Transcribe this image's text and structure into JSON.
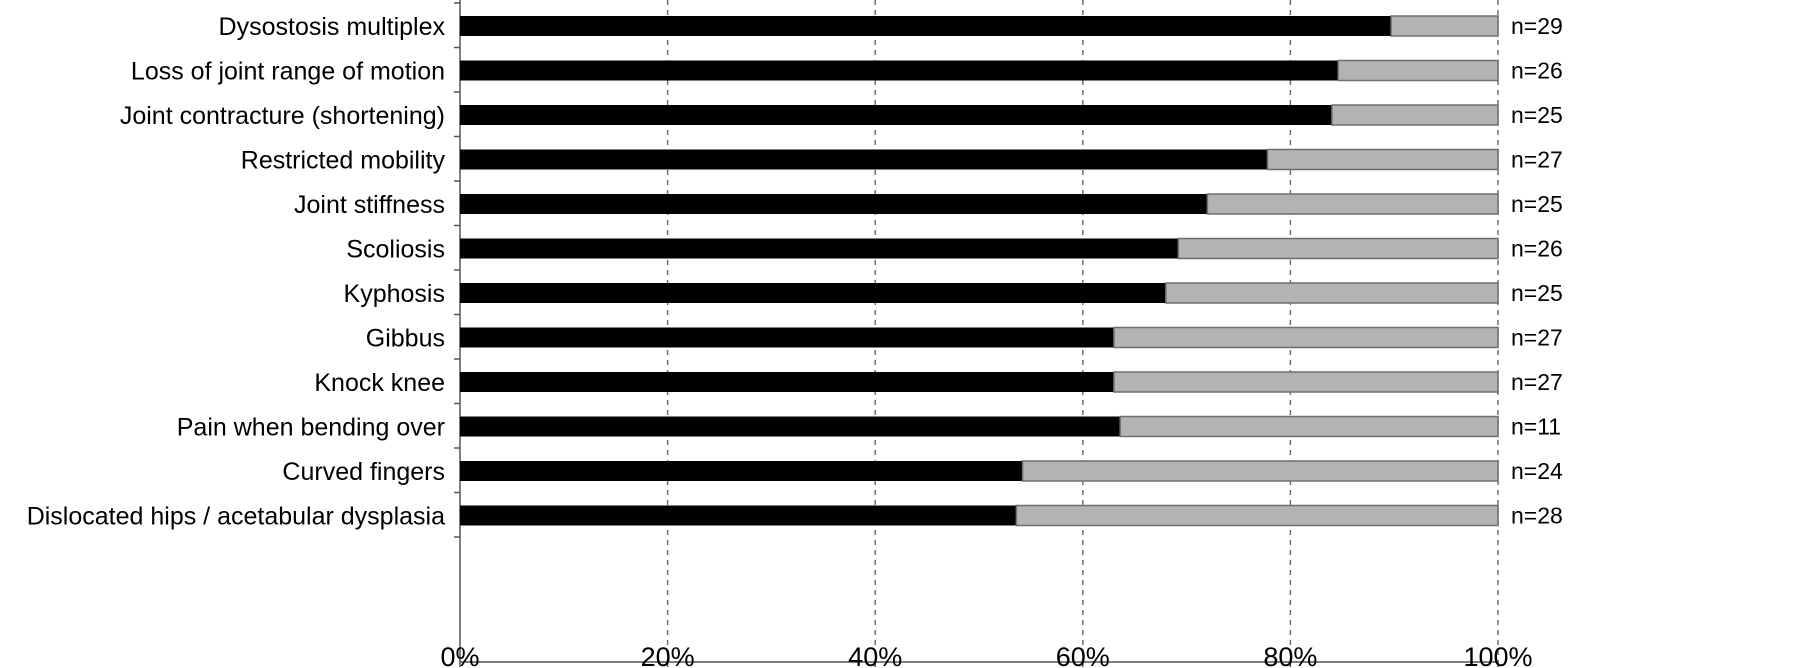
{
  "chart_data": {
    "type": "bar",
    "orientation": "horizontal",
    "stacked": true,
    "categories": [
      "Dysostosis multiplex",
      "Loss of joint range of motion",
      "Joint contracture (shortening)",
      "Restricted mobility",
      "Joint stiffness",
      "Scoliosis",
      "Kyphosis",
      "Gibbus",
      "Knock knee",
      "Pain when bending over",
      "Curved fingers",
      "Dislocated hips / acetabular dysplasia"
    ],
    "values": [
      89.7,
      84.6,
      84.0,
      77.8,
      72.0,
      69.2,
      68.0,
      63.0,
      63.0,
      63.6,
      54.2,
      53.6
    ],
    "n_labels": [
      "n=29",
      "n=26",
      "n=25",
      "n=27",
      "n=25",
      "n=26",
      "n=25",
      "n=27",
      "n=27",
      "n=11",
      "n=24",
      "n=28"
    ],
    "xlim": [
      0,
      100
    ],
    "xticks": [
      "0%",
      "20%",
      "40%",
      "60%",
      "80%",
      "100%"
    ],
    "grid": "vertical-dashed",
    "colors": {
      "present": "#000000",
      "absent": "#b3b3b3",
      "grid": "#707070"
    }
  }
}
